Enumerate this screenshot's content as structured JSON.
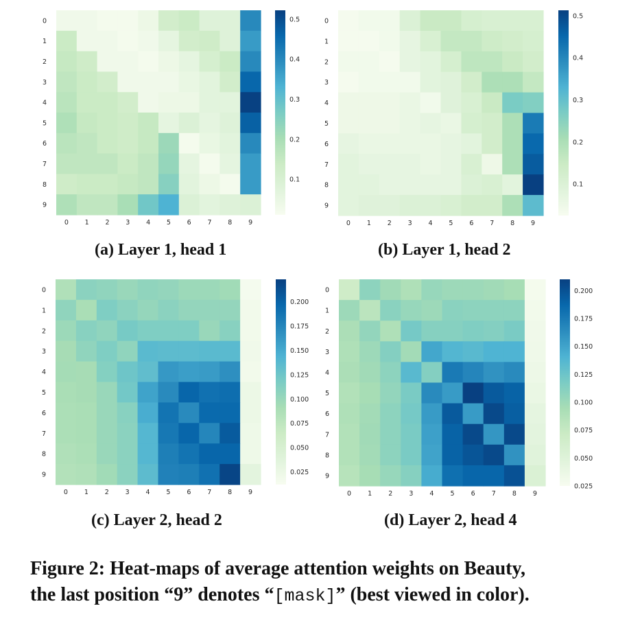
{
  "chart_data": [
    {
      "type": "heatmap",
      "id": "a",
      "title": "(a) Layer 1, head 1",
      "x_ticks": [
        "0",
        "1",
        "2",
        "3",
        "4",
        "5",
        "6",
        "7",
        "8",
        "9"
      ],
      "y_ticks": [
        "0",
        "1",
        "2",
        "3",
        "4",
        "5",
        "6",
        "7",
        "8",
        "9"
      ],
      "colormap": "GnBu",
      "vmin": 0.011,
      "vmax": 0.522,
      "colorbar_ticks": [
        "0.1",
        "0.2",
        "0.3",
        "0.4",
        "0.5"
      ],
      "colorbar_tick_values": [
        0.1,
        0.2,
        0.3,
        0.4,
        0.5
      ],
      "values": [
        [
          0.03,
          0.03,
          0.02,
          0.02,
          0.04,
          0.12,
          0.14,
          0.08,
          0.08,
          0.4
        ],
        [
          0.14,
          0.03,
          0.03,
          0.02,
          0.03,
          0.06,
          0.12,
          0.13,
          0.08,
          0.37
        ],
        [
          0.15,
          0.13,
          0.03,
          0.03,
          0.02,
          0.04,
          0.06,
          0.11,
          0.14,
          0.4
        ],
        [
          0.16,
          0.14,
          0.12,
          0.03,
          0.03,
          0.03,
          0.05,
          0.07,
          0.12,
          0.46
        ],
        [
          0.17,
          0.14,
          0.14,
          0.12,
          0.03,
          0.04,
          0.04,
          0.07,
          0.07,
          0.52
        ],
        [
          0.19,
          0.15,
          0.14,
          0.13,
          0.15,
          0.06,
          0.09,
          0.06,
          0.08,
          0.47
        ],
        [
          0.17,
          0.16,
          0.14,
          0.13,
          0.15,
          0.22,
          0.02,
          0.05,
          0.07,
          0.4
        ],
        [
          0.16,
          0.16,
          0.16,
          0.14,
          0.16,
          0.23,
          0.06,
          0.02,
          0.06,
          0.37
        ],
        [
          0.13,
          0.14,
          0.14,
          0.15,
          0.16,
          0.25,
          0.07,
          0.04,
          0.02,
          0.37
        ],
        [
          0.19,
          0.16,
          0.16,
          0.2,
          0.28,
          0.33,
          0.09,
          0.07,
          0.08,
          0.09
        ]
      ]
    },
    {
      "type": "heatmap",
      "id": "b",
      "title": "(b) Layer 1, head 2",
      "x_ticks": [
        "0",
        "1",
        "2",
        "3",
        "4",
        "5",
        "6",
        "7",
        "8",
        "9"
      ],
      "y_ticks": [
        "0",
        "1",
        "2",
        "3",
        "4",
        "5",
        "6",
        "7",
        "8",
        "9"
      ],
      "colormap": "GnBu",
      "vmin": 0.025,
      "vmax": 0.513,
      "colorbar_ticks": [
        "0.1",
        "0.2",
        "0.3",
        "0.4",
        "0.5"
      ],
      "colorbar_tick_values": [
        0.1,
        0.2,
        0.3,
        0.4,
        0.5
      ],
      "values": [
        [
          0.03,
          0.04,
          0.04,
          0.1,
          0.15,
          0.15,
          0.12,
          0.11,
          0.11,
          0.11
        ],
        [
          0.03,
          0.03,
          0.04,
          0.07,
          0.11,
          0.16,
          0.16,
          0.14,
          0.13,
          0.12
        ],
        [
          0.04,
          0.04,
          0.03,
          0.07,
          0.08,
          0.12,
          0.17,
          0.17,
          0.15,
          0.13
        ],
        [
          0.03,
          0.04,
          0.04,
          0.04,
          0.08,
          0.09,
          0.13,
          0.2,
          0.2,
          0.16
        ],
        [
          0.05,
          0.05,
          0.05,
          0.06,
          0.04,
          0.09,
          0.11,
          0.15,
          0.27,
          0.26
        ],
        [
          0.05,
          0.05,
          0.05,
          0.06,
          0.07,
          0.06,
          0.12,
          0.13,
          0.2,
          0.42
        ],
        [
          0.07,
          0.06,
          0.06,
          0.06,
          0.06,
          0.07,
          0.08,
          0.13,
          0.2,
          0.45
        ],
        [
          0.08,
          0.07,
          0.07,
          0.07,
          0.06,
          0.07,
          0.11,
          0.05,
          0.2,
          0.47
        ],
        [
          0.08,
          0.08,
          0.07,
          0.07,
          0.07,
          0.07,
          0.1,
          0.11,
          0.08,
          0.52
        ],
        [
          0.08,
          0.09,
          0.09,
          0.1,
          0.1,
          0.11,
          0.13,
          0.13,
          0.2,
          0.31
        ]
      ]
    },
    {
      "type": "heatmap",
      "id": "c",
      "title": "(c) Layer 2, head 2",
      "x_ticks": [
        "0",
        "1",
        "2",
        "3",
        "4",
        "5",
        "6",
        "7",
        "8",
        "9"
      ],
      "y_ticks": [
        "0",
        "1",
        "2",
        "3",
        "4",
        "5",
        "6",
        "7",
        "8",
        "9"
      ],
      "colormap": "GnBu",
      "vmin": 0.012,
      "vmax": 0.223,
      "colorbar_ticks": [
        "0.025",
        "0.050",
        "0.075",
        "0.100",
        "0.125",
        "0.150",
        "0.175",
        "0.200"
      ],
      "colorbar_tick_values": [
        0.025,
        0.05,
        0.075,
        0.1,
        0.125,
        0.15,
        0.175,
        0.2
      ],
      "values": [
        [
          0.085,
          0.108,
          0.105,
          0.1,
          0.105,
          0.103,
          0.098,
          0.098,
          0.095,
          0.015
        ],
        [
          0.105,
          0.09,
          0.115,
          0.108,
          0.102,
          0.108,
          0.103,
          0.103,
          0.103,
          0.018
        ],
        [
          0.098,
          0.11,
          0.105,
          0.12,
          0.115,
          0.115,
          0.115,
          0.1,
          0.11,
          0.018
        ],
        [
          0.092,
          0.105,
          0.115,
          0.105,
          0.137,
          0.135,
          0.135,
          0.137,
          0.137,
          0.02
        ],
        [
          0.093,
          0.092,
          0.112,
          0.125,
          0.133,
          0.162,
          0.158,
          0.16,
          0.168,
          0.018
        ],
        [
          0.09,
          0.092,
          0.1,
          0.122,
          0.155,
          0.172,
          0.198,
          0.19,
          0.192,
          0.025
        ],
        [
          0.088,
          0.09,
          0.1,
          0.11,
          0.148,
          0.188,
          0.172,
          0.195,
          0.195,
          0.025
        ],
        [
          0.088,
          0.09,
          0.1,
          0.108,
          0.14,
          0.185,
          0.198,
          0.175,
          0.205,
          0.022
        ],
        [
          0.085,
          0.088,
          0.1,
          0.108,
          0.14,
          0.18,
          0.188,
          0.198,
          0.198,
          0.022
        ],
        [
          0.083,
          0.085,
          0.095,
          0.108,
          0.135,
          0.178,
          0.18,
          0.19,
          0.22,
          0.035
        ]
      ]
    },
    {
      "type": "heatmap",
      "id": "d",
      "title": "(d) Layer 2, head 4",
      "x_ticks": [
        "0",
        "1",
        "2",
        "3",
        "4",
        "5",
        "6",
        "7",
        "8",
        "9"
      ],
      "y_ticks": [
        "0",
        "1",
        "2",
        "3",
        "4",
        "5",
        "6",
        "7",
        "8",
        "9"
      ],
      "colormap": "GnBu",
      "vmin": 0.025,
      "vmax": 0.21,
      "colorbar_ticks": [
        "0.025",
        "0.050",
        "0.075",
        "0.100",
        "0.125",
        "0.150",
        "0.175",
        "0.200"
      ],
      "colorbar_tick_values": [
        0.025,
        0.05,
        0.075,
        0.1,
        0.125,
        0.15,
        0.175,
        0.2
      ],
      "values": [
        [
          0.068,
          0.108,
          0.098,
          0.09,
          0.103,
          0.1,
          0.1,
          0.098,
          0.095,
          0.028
        ],
        [
          0.1,
          0.082,
          0.11,
          0.103,
          0.1,
          0.11,
          0.108,
          0.108,
          0.108,
          0.03
        ],
        [
          0.092,
          0.105,
          0.09,
          0.12,
          0.112,
          0.112,
          0.115,
          0.113,
          0.118,
          0.032
        ],
        [
          0.09,
          0.1,
          0.113,
          0.097,
          0.148,
          0.138,
          0.135,
          0.14,
          0.14,
          0.033
        ],
        [
          0.092,
          0.098,
          0.108,
          0.135,
          0.113,
          0.175,
          0.168,
          0.16,
          0.165,
          0.035
        ],
        [
          0.088,
          0.095,
          0.105,
          0.118,
          0.165,
          0.155,
          0.21,
          0.195,
          0.19,
          0.038
        ],
        [
          0.09,
          0.097,
          0.108,
          0.12,
          0.155,
          0.195,
          0.155,
          0.205,
          0.192,
          0.043
        ],
        [
          0.088,
          0.098,
          0.108,
          0.118,
          0.152,
          0.19,
          0.205,
          0.158,
          0.205,
          0.045
        ],
        [
          0.088,
          0.097,
          0.108,
          0.118,
          0.15,
          0.19,
          0.198,
          0.205,
          0.16,
          0.048
        ],
        [
          0.085,
          0.095,
          0.103,
          0.112,
          0.145,
          0.182,
          0.188,
          0.188,
          0.2,
          0.055
        ]
      ]
    }
  ],
  "colormap_stops": [
    "#f7fcf0",
    "#e0f3db",
    "#ccebc5",
    "#a8ddb5",
    "#7bccc4",
    "#4eb3d3",
    "#2b8cbe",
    "#0868ac",
    "#084081"
  ],
  "subfigure_labels": {
    "a": "(a) Layer 1, head 1",
    "b": "(b) Layer 1, head 2",
    "c": "(c) Layer 2, head 2",
    "d": "(d) Layer 2, head 4"
  },
  "caption": {
    "line1": "Figure 2: Heat-maps of average attention weights on Beauty,",
    "line2_before": "the last position “9” denotes “",
    "line2_mono": "[mask]",
    "line2_after": "” (best viewed in color)."
  }
}
